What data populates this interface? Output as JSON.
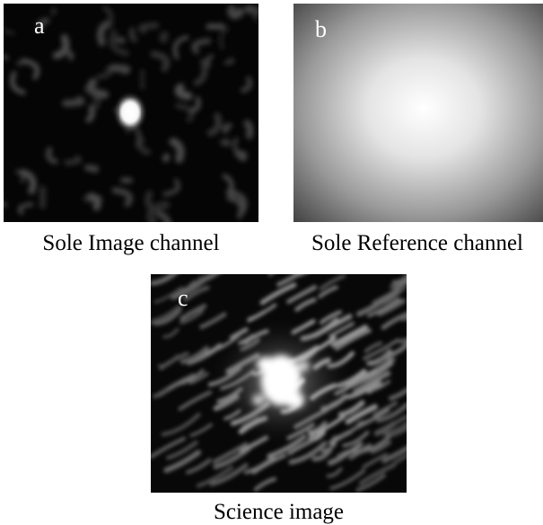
{
  "figure": {
    "panels": [
      {
        "id": "a",
        "letter": "a",
        "caption": "Sole Image channel"
      },
      {
        "id": "b",
        "letter": "b",
        "caption": "Sole Reference channel"
      },
      {
        "id": "c",
        "letter": "c",
        "caption": "Science image"
      }
    ]
  }
}
